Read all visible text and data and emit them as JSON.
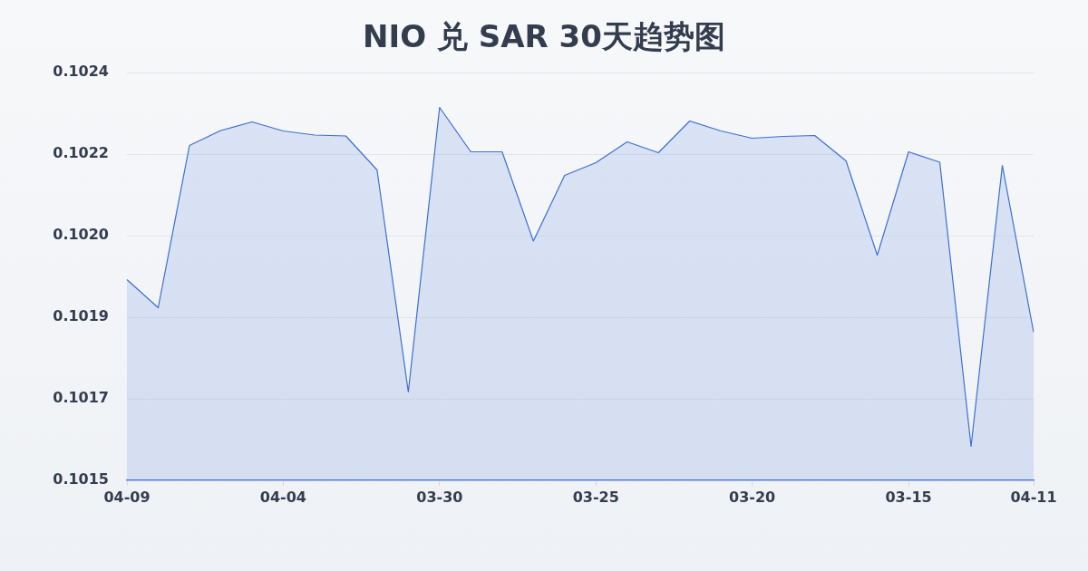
{
  "chart_data": {
    "type": "area",
    "title": "NIO 兑 SAR 30天趋势图",
    "categories": [
      "04-09",
      null,
      null,
      null,
      null,
      "04-04",
      null,
      null,
      null,
      null,
      "03-30",
      null,
      null,
      null,
      null,
      "03-25",
      null,
      null,
      null,
      null,
      "03-20",
      null,
      null,
      null,
      null,
      "03-15",
      null,
      null,
      null,
      "04-11"
    ],
    "values": [
      0.101943,
      0.101881,
      0.102239,
      0.102272,
      0.102291,
      0.102271,
      0.102262,
      0.10226,
      0.102185,
      0.101695,
      0.102323,
      0.102225,
      0.102225,
      0.102028,
      0.102173,
      0.102201,
      0.102247,
      0.102223,
      0.102293,
      0.102271,
      0.102255,
      0.102259,
      0.102261,
      0.102205,
      0.101997,
      0.102225,
      0.102202,
      0.101575,
      0.102195,
      0.101827
    ],
    "color": "#3b6fd4",
    "ylim": [
      0.1015,
      0.1024
    ],
    "yticks": [
      0.1015,
      {
        "value": 0.10168,
        "label": "0.1017"
      },
      {
        "value": 0.10186,
        "label": "0.1019"
      },
      {
        "value": 0.10204,
        "label": "0.1020"
      },
      {
        "value": 0.10222,
        "label": "0.1022"
      },
      0.1024
    ],
    "grid": "y"
  }
}
